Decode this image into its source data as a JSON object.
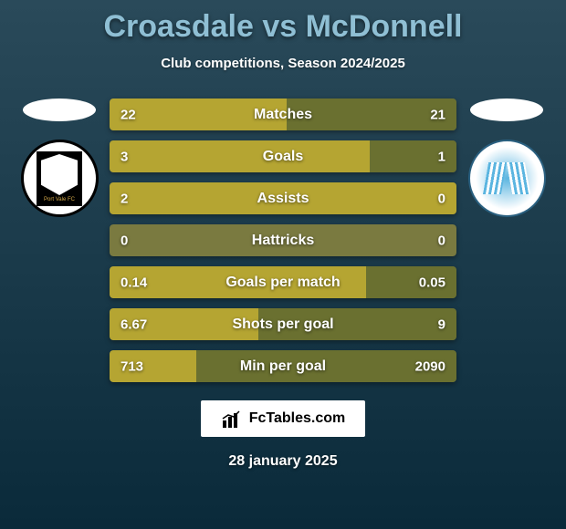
{
  "title": "Croasdale vs McDonnell",
  "subtitle": "Club competitions, Season 2024/2025",
  "date": "28 january 2025",
  "watermark": "FcTables.com",
  "colors": {
    "title": "#8fbfd4",
    "bar_left": "#b5a532",
    "bar_right": "#6a7030",
    "bar_bg": "#7a7a40",
    "background_top": "#2a4a5a",
    "background_bottom": "#0a2a3a"
  },
  "teams": {
    "left": {
      "name": "Port Vale FC",
      "marker_color": "#ffffff"
    },
    "right": {
      "name": "Colchester United FC",
      "marker_color": "#ffffff"
    }
  },
  "stats": [
    {
      "label": "Matches",
      "left_value": "22",
      "right_value": "21",
      "left_pct": 51,
      "right_pct": 49
    },
    {
      "label": "Goals",
      "left_value": "3",
      "right_value": "1",
      "left_pct": 75,
      "right_pct": 25
    },
    {
      "label": "Assists",
      "left_value": "2",
      "right_value": "0",
      "left_pct": 100,
      "right_pct": 0
    },
    {
      "label": "Hattricks",
      "left_value": "0",
      "right_value": "0",
      "left_pct": 0,
      "right_pct": 0
    },
    {
      "label": "Goals per match",
      "left_value": "0.14",
      "right_value": "0.05",
      "left_pct": 74,
      "right_pct": 26
    },
    {
      "label": "Shots per goal",
      "left_value": "6.67",
      "right_value": "9",
      "left_pct": 43,
      "right_pct": 57
    },
    {
      "label": "Min per goal",
      "left_value": "713",
      "right_value": "2090",
      "left_pct": 25,
      "right_pct": 75
    }
  ]
}
